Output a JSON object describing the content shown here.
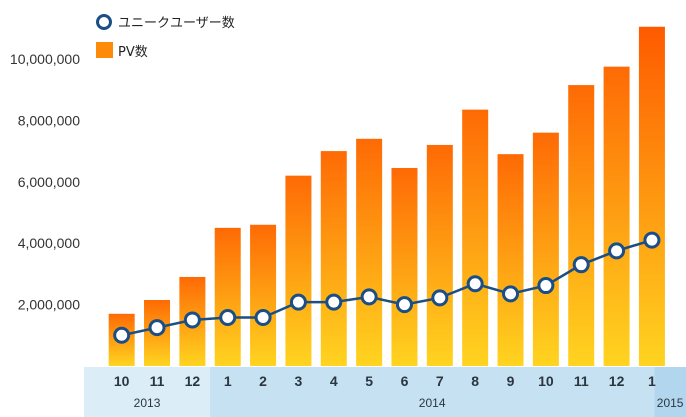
{
  "chart_data": {
    "type": "bar",
    "categories": [
      "10",
      "11",
      "12",
      "1",
      "2",
      "3",
      "4",
      "5",
      "6",
      "7",
      "8",
      "9",
      "10",
      "11",
      "12",
      "1"
    ],
    "years": [
      {
        "label": "2013",
        "span": 3
      },
      {
        "label": "2014",
        "span": 12
      },
      {
        "label": "2015",
        "span": 1
      }
    ],
    "series": [
      {
        "name": "PV数",
        "type": "bar",
        "values": [
          1700000,
          2150000,
          2900000,
          4500000,
          4600000,
          6200000,
          7000000,
          7400000,
          6450000,
          7200000,
          8350000,
          6900000,
          7600000,
          9150000,
          9750000,
          11050000
        ]
      },
      {
        "name": "ユニークユーザー数",
        "type": "line",
        "values": [
          1000000,
          1250000,
          1500000,
          1580000,
          1580000,
          2080000,
          2080000,
          2250000,
          2000000,
          2220000,
          2680000,
          2350000,
          2620000,
          3300000,
          3750000,
          4100000
        ]
      }
    ],
    "yticks": [
      "2,000,000",
      "4,000,000",
      "6,000,000",
      "8,000,000",
      "10,000,000"
    ],
    "ylim": [
      0,
      11400000
    ],
    "colors": {
      "bar_top": "#fe6a05",
      "bar_bottom": "#ffd420",
      "bar_top_last": "#fe5a00",
      "line": "#1b4e85",
      "marker_fill": "#ffffff",
      "axis_band": "#dbeef8",
      "axis_band_mid": "#c6e2f2",
      "axis_band_last": "#b2d6ee"
    }
  }
}
